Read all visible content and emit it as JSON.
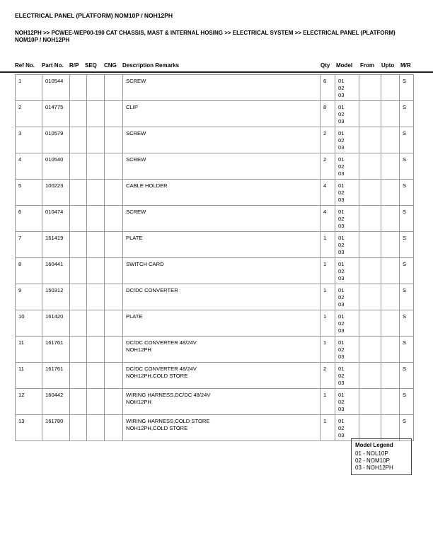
{
  "title": "ELECTRICAL PANEL (PLATFORM) NOM10P / NOH12PH",
  "breadcrumb": "NOH12PH >> PCWEE-WEP00-190 CAT CHASSIS, MAST & INTERNAL HOSING >> ELECTRICAL SYSTEM >> ELECTRICAL PANEL (PLATFORM) NOM10P / NOH12PH",
  "columns": [
    "Ref No.",
    "Part No.",
    "R/P",
    "SEQ",
    "CNG",
    "Description Remarks",
    "Qty",
    "Model",
    "From",
    "Upto",
    "M/R"
  ],
  "rows": [
    {
      "ref": "1",
      "part": "010544",
      "desc": "SCREW",
      "remark": "",
      "qty": "6",
      "models": [
        "01",
        "02",
        "03"
      ],
      "mr": "S"
    },
    {
      "ref": "2",
      "part": "014775",
      "desc": "CLIP",
      "remark": "",
      "qty": "8",
      "models": [
        "01",
        "02",
        "03"
      ],
      "mr": "S"
    },
    {
      "ref": "3",
      "part": "010579",
      "desc": "SCREW",
      "remark": "",
      "qty": "2",
      "models": [
        "01",
        "02",
        "03"
      ],
      "mr": "S"
    },
    {
      "ref": "4",
      "part": "010540",
      "desc": "SCREW",
      "remark": "",
      "qty": "2",
      "models": [
        "01",
        "02",
        "03"
      ],
      "mr": "S"
    },
    {
      "ref": "5",
      "part": "100223",
      "desc": "CABLE HOLDER",
      "remark": "",
      "qty": "4",
      "models": [
        "01",
        "02",
        "03"
      ],
      "mr": "S"
    },
    {
      "ref": "6",
      "part": "010474",
      "desc": "SCREW",
      "remark": "",
      "qty": "4",
      "models": [
        "01",
        "02",
        "03"
      ],
      "mr": "S"
    },
    {
      "ref": "7",
      "part": "161419",
      "desc": "PLATE",
      "remark": "",
      "qty": "1",
      "models": [
        "01",
        "02",
        "03"
      ],
      "mr": "S"
    },
    {
      "ref": "8",
      "part": "160441",
      "desc": "SWITCH CARD",
      "remark": "",
      "qty": "1",
      "models": [
        "01",
        "02",
        "03"
      ],
      "mr": "S"
    },
    {
      "ref": "9",
      "part": "150312",
      "desc": "DC/DC CONVERTER",
      "remark": "",
      "qty": "1",
      "models": [
        "01",
        "02",
        "03"
      ],
      "mr": "S"
    },
    {
      "ref": "10",
      "part": "161420",
      "desc": "PLATE",
      "remark": "",
      "qty": "1",
      "models": [
        "01",
        "02",
        "03"
      ],
      "mr": "S"
    },
    {
      "ref": "11",
      "part": "161761",
      "desc": "DC/DC CONVERTER 48/24V",
      "remark": "NOH12PH",
      "qty": "1",
      "models": [
        "01",
        "02",
        "03"
      ],
      "mr": "S"
    },
    {
      "ref": "11",
      "part": "161761",
      "desc": "DC/DC CONVERTER 48/24V",
      "remark": "NOH12PH,COLD STORE",
      "qty": "2",
      "models": [
        "01",
        "02",
        "03"
      ],
      "mr": "S"
    },
    {
      "ref": "12",
      "part": "160442",
      "desc": "WIRING HARNESS,DC/DC 48/24V",
      "remark": "NOH12PH",
      "qty": "1",
      "models": [
        "01",
        "02",
        "03"
      ],
      "mr": "S"
    },
    {
      "ref": "13",
      "part": "161780",
      "desc": "WIRING HARNESS,COLD STORE",
      "remark": "NOH12PH,COLD STORE",
      "qty": "1",
      "models": [
        "01",
        "02",
        "03"
      ],
      "mr": "S"
    }
  ],
  "legend": {
    "title": "Model Legend",
    "items": [
      "01 - NOL10P",
      "02 - NOM10P",
      "03 - NOH12PH"
    ]
  }
}
